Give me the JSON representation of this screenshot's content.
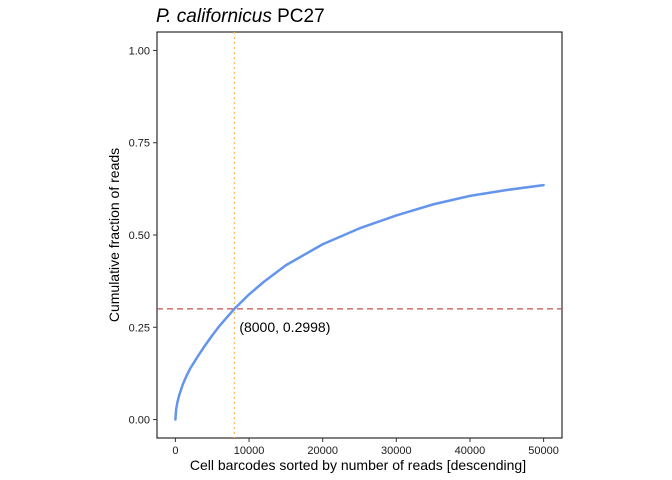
{
  "chart_data": {
    "type": "line",
    "title_italic": "P. californicus",
    "title_rest": " PC27",
    "xlabel": "Cell barcodes sorted by number of reads [descending]",
    "ylabel": "Cumulative fraction of reads",
    "xlim": [
      -2500,
      52500
    ],
    "ylim": [
      -0.05,
      1.05
    ],
    "x_ticks": [
      0,
      10000,
      20000,
      30000,
      40000,
      50000
    ],
    "x_tick_labels": [
      "0",
      "10000",
      "20000",
      "30000",
      "40000",
      "50000"
    ],
    "y_ticks": [
      0.0,
      0.25,
      0.5,
      0.75,
      1.0
    ],
    "y_tick_labels": [
      "0.00",
      "0.25",
      "0.50",
      "0.75",
      "1.00"
    ],
    "grid": false,
    "series": [
      {
        "color": "#6495ED",
        "x": [
          0,
          100,
          250,
          500,
          1000,
          1500,
          2000,
          3000,
          4000,
          5000,
          6000,
          7000,
          8000,
          10000,
          12000,
          15000,
          20000,
          25000,
          30000,
          35000,
          40000,
          45000,
          50000
        ],
        "y": [
          0.0,
          0.028,
          0.045,
          0.065,
          0.095,
          0.118,
          0.138,
          0.17,
          0.2,
          0.228,
          0.254,
          0.277,
          0.2998,
          0.339,
          0.373,
          0.418,
          0.475,
          0.518,
          0.553,
          0.583,
          0.606,
          0.622,
          0.635
        ]
      }
    ],
    "hline": {
      "y": 0.2998,
      "color": "#C0504D",
      "style": "dashed"
    },
    "vline": {
      "x": 8000,
      "color": "#FFB84D",
      "style": "dotted"
    },
    "annotation": {
      "text": "(8000, 0.2998)",
      "x": 8000,
      "y": 0.2998
    }
  }
}
